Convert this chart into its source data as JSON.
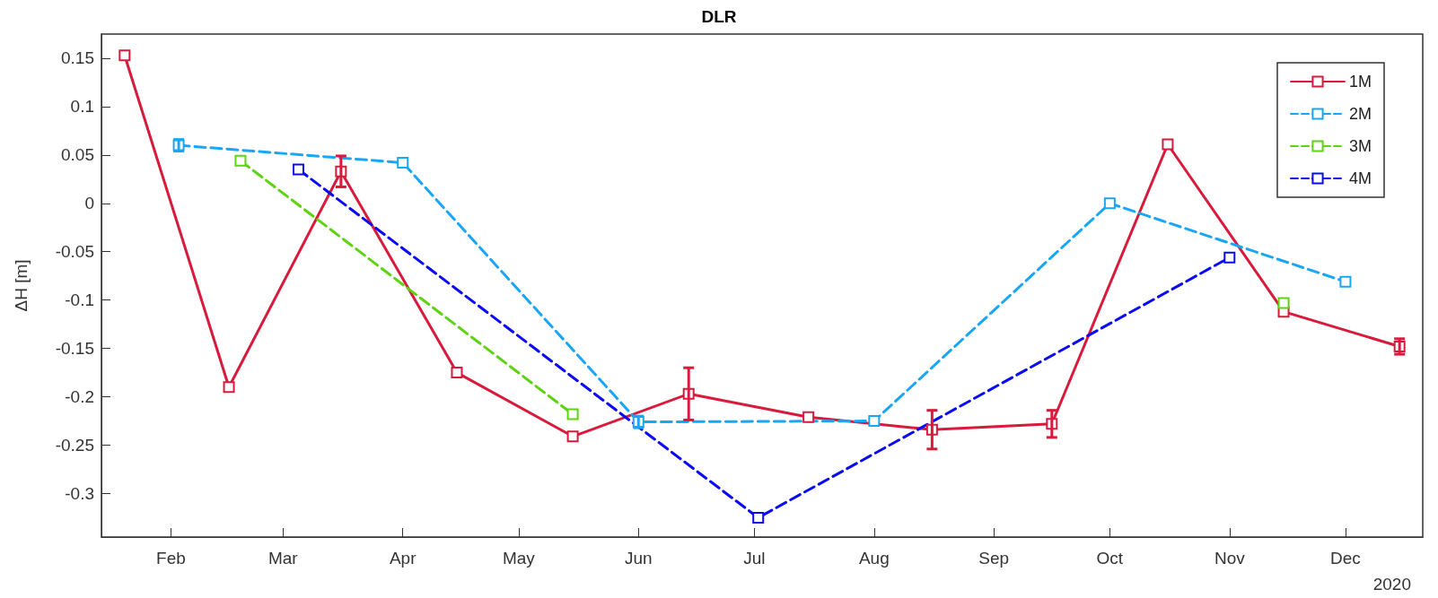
{
  "chart_data": {
    "type": "line",
    "title": "DLR",
    "ylabel": "ΔH [m]",
    "annotations": [
      "2020"
    ],
    "xlim": [
      "2020-01-14",
      "2020-12-21"
    ],
    "xticks": [
      {
        "value": "2020-02-01",
        "label": "Feb"
      },
      {
        "value": "2020-03-01",
        "label": "Mar"
      },
      {
        "value": "2020-04-01",
        "label": "Apr"
      },
      {
        "value": "2020-05-01",
        "label": "May"
      },
      {
        "value": "2020-06-01",
        "label": "Jun"
      },
      {
        "value": "2020-07-01",
        "label": "Jul"
      },
      {
        "value": "2020-08-01",
        "label": "Aug"
      },
      {
        "value": "2020-09-01",
        "label": "Sep"
      },
      {
        "value": "2020-10-01",
        "label": "Oct"
      },
      {
        "value": "2020-11-01",
        "label": "Nov"
      },
      {
        "value": "2020-12-01",
        "label": "Dec"
      }
    ],
    "ylim": [
      -0.345,
      0.175
    ],
    "yticks": [
      -0.3,
      -0.25,
      -0.2,
      -0.15,
      -0.1,
      -0.05,
      0,
      0.05,
      0.1,
      0.15
    ],
    "grid": false,
    "legend": "top right",
    "marker": "square",
    "series": [
      {
        "name": "1M",
        "color": "#d81b3c",
        "line_style": "solid",
        "x": [
          "2020-01-20",
          "2020-02-16",
          "2020-03-16",
          "2020-04-15",
          "2020-05-15",
          "2020-06-14",
          "2020-07-15",
          "2020-08-16",
          "2020-09-16",
          "2020-10-16",
          "2020-11-15",
          "2020-12-15"
        ],
        "values": [
          0.153,
          -0.19,
          0.033,
          -0.175,
          -0.241,
          -0.197,
          -0.221,
          -0.234,
          -0.228,
          0.061,
          -0.112,
          -0.148
        ],
        "errors": [
          null,
          null,
          0.016,
          null,
          null,
          0.027,
          null,
          0.02,
          0.014,
          null,
          null,
          0.008
        ]
      },
      {
        "name": "2M",
        "color": "#1aa6f5",
        "line_style": "dashed",
        "x": [
          "2020-02-03",
          "2020-04-01",
          "2020-06-01",
          "2020-08-01",
          "2020-10-01",
          "2020-12-01"
        ],
        "values": [
          0.06,
          0.042,
          -0.226,
          -0.225,
          0.0,
          -0.081
        ],
        "errors": [
          0.006,
          null,
          0.006,
          null,
          null,
          null
        ]
      },
      {
        "name": "3M",
        "color": "#5fd313",
        "line_style": "dashed",
        "x": [
          "2020-02-19",
          "2020-05-15",
          "2020-08-13",
          "2020-11-15"
        ],
        "values": [
          0.044,
          -0.218,
          null,
          -0.103
        ]
      },
      {
        "name": "4M",
        "color": "#0a0af5",
        "line_style": "dashed",
        "x": [
          "2020-03-05",
          "2020-07-02",
          "2020-11-01"
        ],
        "values": [
          0.035,
          -0.325,
          -0.056
        ]
      }
    ]
  }
}
